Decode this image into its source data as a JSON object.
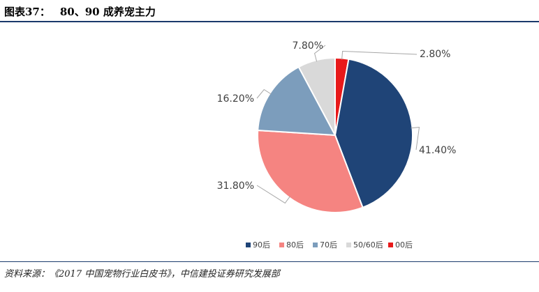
{
  "figure": {
    "label": "图表37：",
    "title": "80、90 成养宠主力",
    "source": "资料来源：《2017 中国宠物行业白皮书》，中信建投证券研究发展部"
  },
  "chart_data": {
    "type": "pie",
    "title": "",
    "legend_position": "bottom",
    "start_angle_deg": 0,
    "direction": "clockwise",
    "slices": [
      {
        "name": "00后",
        "value": 2.8,
        "label": "2.80%",
        "color": "#e8191a"
      },
      {
        "name": "90后",
        "value": 41.4,
        "label": "41.40%",
        "color": "#1f4477"
      },
      {
        "name": "80后",
        "value": 31.8,
        "label": "31.80%",
        "color": "#f58481"
      },
      {
        "name": "70后",
        "value": 16.2,
        "label": "16.20%",
        "color": "#7c9dbc"
      },
      {
        "name": "50/60后",
        "value": 7.8,
        "label": "7.80%",
        "color": "#d9d9d9"
      }
    ],
    "legend_order": [
      "90后",
      "80后",
      "70后",
      "50/60后",
      "00后"
    ]
  }
}
